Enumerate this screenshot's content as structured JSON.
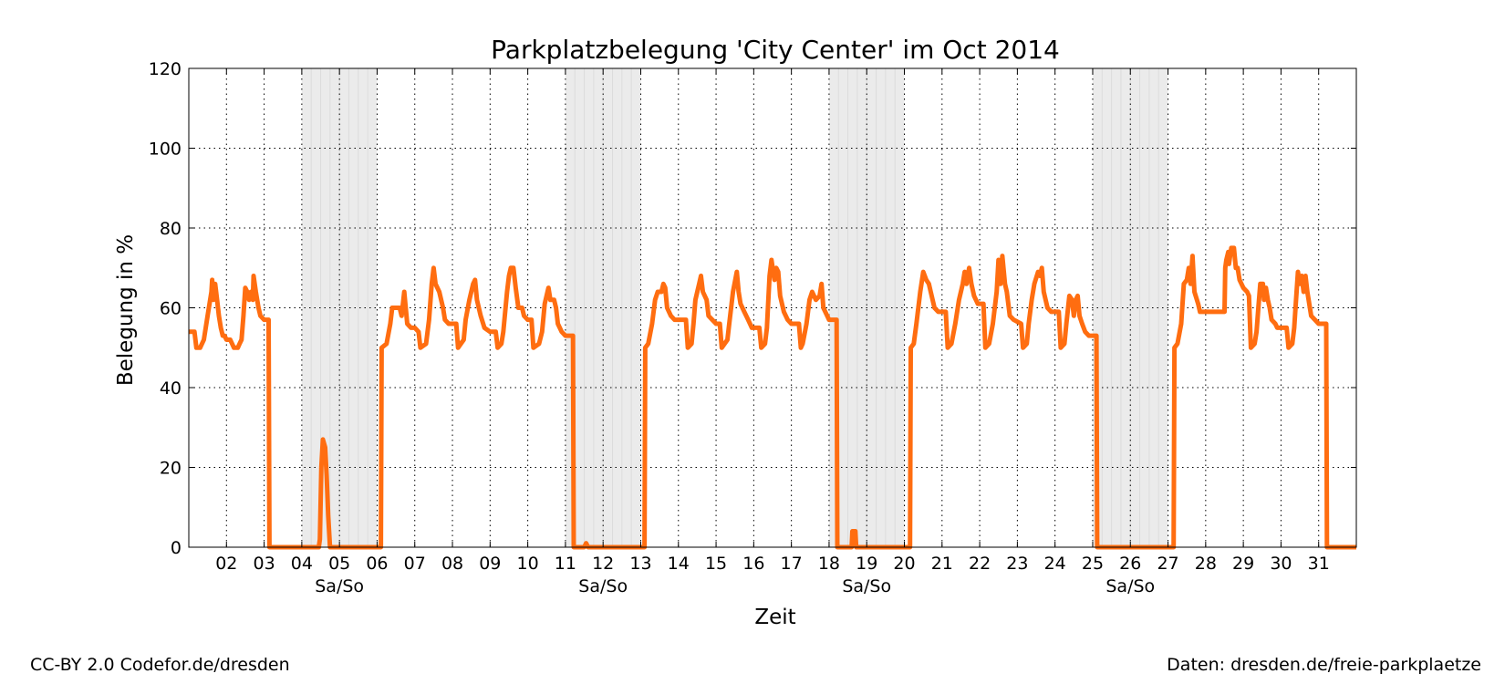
{
  "chart_data": {
    "type": "line",
    "title": "Parkplatzbelegung 'City  Center' im Oct 2014",
    "xlabel": "Zeit",
    "ylabel": "Belegung in %",
    "xlim": [
      1,
      32
    ],
    "ylim": [
      0,
      120
    ],
    "yticks": [
      0,
      20,
      40,
      60,
      80,
      100,
      120
    ],
    "xticks": [
      2,
      3,
      4,
      5,
      6,
      7,
      8,
      9,
      10,
      11,
      12,
      13,
      14,
      15,
      16,
      17,
      18,
      19,
      20,
      21,
      22,
      23,
      24,
      25,
      26,
      27,
      28,
      29,
      30,
      31
    ],
    "xtick_labels": [
      "02",
      "03",
      "04",
      "05",
      "06",
      "07",
      "08",
      "09",
      "10",
      "11",
      "12",
      "13",
      "14",
      "15",
      "16",
      "17",
      "18",
      "19",
      "20",
      "21",
      "22",
      "23",
      "24",
      "25",
      "26",
      "27",
      "28",
      "29",
      "30",
      "31"
    ],
    "weekend_label": "Sa/So",
    "weekend_label_days": [
      5,
      12,
      19,
      26
    ],
    "weekend_ranges": [
      [
        4,
        6
      ],
      [
        11,
        13
      ],
      [
        18,
        20
      ],
      [
        25,
        27
      ]
    ],
    "grid": true,
    "line_color": "#ff6d10",
    "weekend_color": "#ebebeb",
    "series": [
      {
        "points": [
          [
            1.0,
            54
          ],
          [
            1.15,
            54
          ],
          [
            1.2,
            50
          ],
          [
            1.3,
            50
          ],
          [
            1.4,
            52
          ],
          [
            1.5,
            58
          ],
          [
            1.6,
            64
          ],
          [
            1.62,
            67
          ],
          [
            1.65,
            62
          ],
          [
            1.7,
            66
          ],
          [
            1.75,
            62
          ],
          [
            1.8,
            58
          ],
          [
            1.85,
            55
          ],
          [
            1.9,
            53
          ],
          [
            1.95,
            53
          ],
          [
            2.0,
            52
          ],
          [
            2.1,
            52
          ],
          [
            2.2,
            50
          ],
          [
            2.3,
            50
          ],
          [
            2.35,
            51
          ],
          [
            2.4,
            52
          ],
          [
            2.45,
            58
          ],
          [
            2.5,
            65
          ],
          [
            2.55,
            64
          ],
          [
            2.6,
            62
          ],
          [
            2.65,
            64
          ],
          [
            2.7,
            62
          ],
          [
            2.72,
            68
          ],
          [
            2.78,
            64
          ],
          [
            2.85,
            60
          ],
          [
            2.9,
            58
          ],
          [
            3.0,
            57
          ],
          [
            3.12,
            57
          ],
          [
            3.14,
            0
          ],
          [
            4.45,
            0
          ],
          [
            4.48,
            2
          ],
          [
            4.52,
            20
          ],
          [
            4.56,
            27
          ],
          [
            4.62,
            25
          ],
          [
            4.66,
            18
          ],
          [
            4.7,
            8
          ],
          [
            4.75,
            0
          ],
          [
            6.1,
            0
          ],
          [
            6.12,
            50
          ],
          [
            6.25,
            51
          ],
          [
            6.35,
            56
          ],
          [
            6.4,
            60
          ],
          [
            6.5,
            60
          ],
          [
            6.6,
            60
          ],
          [
            6.65,
            58
          ],
          [
            6.72,
            64
          ],
          [
            6.75,
            61
          ],
          [
            6.8,
            56
          ],
          [
            6.9,
            55
          ],
          [
            7.0,
            55
          ],
          [
            7.1,
            54
          ],
          [
            7.15,
            50
          ],
          [
            7.3,
            51
          ],
          [
            7.38,
            57
          ],
          [
            7.45,
            66
          ],
          [
            7.5,
            70
          ],
          [
            7.55,
            66
          ],
          [
            7.65,
            64
          ],
          [
            7.75,
            60
          ],
          [
            7.8,
            57
          ],
          [
            7.9,
            56
          ],
          [
            8.1,
            56
          ],
          [
            8.15,
            50
          ],
          [
            8.3,
            52
          ],
          [
            8.35,
            57
          ],
          [
            8.45,
            62
          ],
          [
            8.55,
            66
          ],
          [
            8.6,
            67
          ],
          [
            8.65,
            62
          ],
          [
            8.75,
            58
          ],
          [
            8.85,
            55
          ],
          [
            9.0,
            54
          ],
          [
            9.15,
            54
          ],
          [
            9.2,
            50
          ],
          [
            9.3,
            51
          ],
          [
            9.35,
            54
          ],
          [
            9.45,
            64
          ],
          [
            9.5,
            68
          ],
          [
            9.55,
            70
          ],
          [
            9.62,
            70
          ],
          [
            9.68,
            65
          ],
          [
            9.75,
            60
          ],
          [
            9.85,
            60
          ],
          [
            9.9,
            58
          ],
          [
            10.0,
            57
          ],
          [
            10.1,
            57
          ],
          [
            10.15,
            50
          ],
          [
            10.3,
            51
          ],
          [
            10.38,
            54
          ],
          [
            10.45,
            61
          ],
          [
            10.55,
            65
          ],
          [
            10.6,
            62
          ],
          [
            10.7,
            62
          ],
          [
            10.75,
            60
          ],
          [
            10.8,
            56
          ],
          [
            10.9,
            54
          ],
          [
            11.0,
            53
          ],
          [
            11.2,
            53
          ],
          [
            11.22,
            0
          ],
          [
            11.5,
            0
          ],
          [
            11.55,
            1
          ],
          [
            11.6,
            0
          ],
          [
            13.1,
            0
          ],
          [
            13.12,
            50
          ],
          [
            13.2,
            51
          ],
          [
            13.3,
            56
          ],
          [
            13.38,
            62
          ],
          [
            13.45,
            64
          ],
          [
            13.55,
            64
          ],
          [
            13.6,
            66
          ],
          [
            13.65,
            65
          ],
          [
            13.7,
            60
          ],
          [
            13.8,
            58
          ],
          [
            13.9,
            57
          ],
          [
            14.0,
            57
          ],
          [
            14.2,
            57
          ],
          [
            14.25,
            50
          ],
          [
            14.35,
            51
          ],
          [
            14.4,
            56
          ],
          [
            14.45,
            62
          ],
          [
            14.55,
            66
          ],
          [
            14.6,
            68
          ],
          [
            14.65,
            64
          ],
          [
            14.75,
            62
          ],
          [
            14.8,
            58
          ],
          [
            14.9,
            57
          ],
          [
            15.0,
            56
          ],
          [
            15.1,
            56
          ],
          [
            15.15,
            50
          ],
          [
            15.3,
            52
          ],
          [
            15.35,
            56
          ],
          [
            15.45,
            64
          ],
          [
            15.55,
            69
          ],
          [
            15.6,
            64
          ],
          [
            15.65,
            61
          ],
          [
            15.75,
            59
          ],
          [
            15.85,
            57
          ],
          [
            15.95,
            55
          ],
          [
            16.15,
            55
          ],
          [
            16.2,
            50
          ],
          [
            16.3,
            51
          ],
          [
            16.35,
            55
          ],
          [
            16.42,
            68
          ],
          [
            16.47,
            72
          ],
          [
            16.55,
            67
          ],
          [
            16.6,
            70
          ],
          [
            16.65,
            69
          ],
          [
            16.7,
            63
          ],
          [
            16.8,
            59
          ],
          [
            16.9,
            57
          ],
          [
            17.0,
            56
          ],
          [
            17.2,
            56
          ],
          [
            17.25,
            50
          ],
          [
            17.3,
            51
          ],
          [
            17.4,
            56
          ],
          [
            17.48,
            62
          ],
          [
            17.55,
            64
          ],
          [
            17.65,
            62
          ],
          [
            17.75,
            63
          ],
          [
            17.8,
            66
          ],
          [
            17.85,
            60
          ],
          [
            17.95,
            58
          ],
          [
            18.0,
            57
          ],
          [
            18.2,
            57
          ],
          [
            18.22,
            0
          ],
          [
            18.6,
            0
          ],
          [
            18.62,
            4
          ],
          [
            18.7,
            4
          ],
          [
            18.72,
            0
          ],
          [
            20.15,
            0
          ],
          [
            20.17,
            50
          ],
          [
            20.25,
            51
          ],
          [
            20.32,
            56
          ],
          [
            20.42,
            64
          ],
          [
            20.5,
            69
          ],
          [
            20.58,
            67
          ],
          [
            20.65,
            66
          ],
          [
            20.7,
            64
          ],
          [
            20.8,
            60
          ],
          [
            20.9,
            59
          ],
          [
            21.1,
            59
          ],
          [
            21.15,
            50
          ],
          [
            21.25,
            51
          ],
          [
            21.35,
            56
          ],
          [
            21.45,
            62
          ],
          [
            21.55,
            66
          ],
          [
            21.6,
            69
          ],
          [
            21.65,
            66
          ],
          [
            21.72,
            70
          ],
          [
            21.78,
            66
          ],
          [
            21.85,
            63
          ],
          [
            21.95,
            61
          ],
          [
            22.1,
            61
          ],
          [
            22.15,
            50
          ],
          [
            22.25,
            51
          ],
          [
            22.35,
            56
          ],
          [
            22.45,
            64
          ],
          [
            22.5,
            72
          ],
          [
            22.55,
            66
          ],
          [
            22.6,
            73
          ],
          [
            22.67,
            66
          ],
          [
            22.72,
            64
          ],
          [
            22.8,
            58
          ],
          [
            22.9,
            57
          ],
          [
            23.1,
            56
          ],
          [
            23.15,
            50
          ],
          [
            23.25,
            51
          ],
          [
            23.3,
            56
          ],
          [
            23.38,
            62
          ],
          [
            23.45,
            66
          ],
          [
            23.55,
            69
          ],
          [
            23.6,
            68
          ],
          [
            23.65,
            70
          ],
          [
            23.7,
            64
          ],
          [
            23.8,
            60
          ],
          [
            23.9,
            59
          ],
          [
            24.1,
            59
          ],
          [
            24.15,
            50
          ],
          [
            24.25,
            51
          ],
          [
            24.3,
            56
          ],
          [
            24.38,
            63
          ],
          [
            24.45,
            62
          ],
          [
            24.5,
            58
          ],
          [
            24.55,
            62
          ],
          [
            24.6,
            63
          ],
          [
            24.65,
            58
          ],
          [
            24.72,
            56
          ],
          [
            24.8,
            54
          ],
          [
            24.9,
            53
          ],
          [
            25.1,
            53
          ],
          [
            25.12,
            0
          ],
          [
            27.15,
            0
          ],
          [
            27.17,
            50
          ],
          [
            27.25,
            51
          ],
          [
            27.35,
            56
          ],
          [
            27.42,
            66
          ],
          [
            27.5,
            67
          ],
          [
            27.55,
            70
          ],
          [
            27.6,
            66
          ],
          [
            27.65,
            73
          ],
          [
            27.7,
            64
          ],
          [
            27.8,
            61
          ],
          [
            27.85,
            59
          ],
          [
            27.9,
            59
          ],
          [
            28.5,
            59
          ],
          [
            28.52,
            70
          ],
          [
            28.55,
            72
          ],
          [
            28.6,
            74
          ],
          [
            28.62,
            71
          ],
          [
            28.68,
            75
          ],
          [
            28.75,
            75
          ],
          [
            28.8,
            70
          ],
          [
            28.85,
            70
          ],
          [
            28.9,
            67
          ],
          [
            29.0,
            65
          ],
          [
            29.1,
            64
          ],
          [
            29.15,
            63
          ],
          [
            29.2,
            50
          ],
          [
            29.3,
            51
          ],
          [
            29.35,
            54
          ],
          [
            29.4,
            60
          ],
          [
            29.45,
            66
          ],
          [
            29.52,
            66
          ],
          [
            29.55,
            62
          ],
          [
            29.6,
            65
          ],
          [
            29.65,
            62
          ],
          [
            29.7,
            60
          ],
          [
            29.75,
            57
          ],
          [
            29.85,
            56
          ],
          [
            29.9,
            55
          ],
          [
            30.15,
            55
          ],
          [
            30.2,
            50
          ],
          [
            30.3,
            51
          ],
          [
            30.35,
            55
          ],
          [
            30.4,
            62
          ],
          [
            30.45,
            69
          ],
          [
            30.5,
            66
          ],
          [
            30.55,
            68
          ],
          [
            30.6,
            64
          ],
          [
            30.65,
            68
          ],
          [
            30.7,
            64
          ],
          [
            30.75,
            61
          ],
          [
            30.8,
            58
          ],
          [
            30.9,
            57
          ],
          [
            31.0,
            56
          ],
          [
            31.2,
            56
          ],
          [
            31.22,
            0
          ],
          [
            32.0,
            0
          ]
        ]
      }
    ]
  },
  "footer": {
    "license": "CC-BY 2.0 Codefor.de/dresden",
    "source": "Daten: dresden.de/freie-parkplaetze"
  }
}
